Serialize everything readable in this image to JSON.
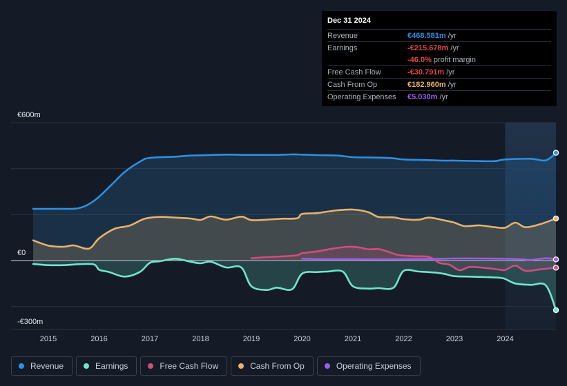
{
  "chart_data": {
    "type": "area",
    "title": "",
    "y_unit": "€",
    "ylim": [
      -300,
      600
    ],
    "y_tick_labels": [
      {
        "value": 600,
        "label": "€600m"
      },
      {
        "value": 0,
        "label": "€0"
      },
      {
        "value": -300,
        "label": "-€300m"
      }
    ],
    "xlim": [
      2014.7,
      2025.0
    ],
    "x_ticks": [
      2015,
      2016,
      2017,
      2018,
      2019,
      2020,
      2021,
      2022,
      2023,
      2024
    ],
    "highlight_start": 2024.0,
    "series": [
      {
        "key": "revenue",
        "name": "Revenue",
        "color": "#2e8fe0",
        "fill": true,
        "points": [
          [
            2014.7,
            225
          ],
          [
            2015.2,
            225
          ],
          [
            2015.6,
            228
          ],
          [
            2015.9,
            260
          ],
          [
            2016.2,
            320
          ],
          [
            2016.5,
            385
          ],
          [
            2016.8,
            430
          ],
          [
            2017.0,
            447
          ],
          [
            2017.5,
            452
          ],
          [
            2017.8,
            457
          ],
          [
            2018.0,
            458
          ],
          [
            2018.5,
            461
          ],
          [
            2018.9,
            460
          ],
          [
            2019.2,
            460
          ],
          [
            2019.5,
            460
          ],
          [
            2019.8,
            462
          ],
          [
            2020.0,
            461
          ],
          [
            2020.3,
            459
          ],
          [
            2020.7,
            457
          ],
          [
            2021.0,
            450
          ],
          [
            2021.5,
            448
          ],
          [
            2021.8,
            445
          ],
          [
            2022.0,
            440
          ],
          [
            2022.5,
            437
          ],
          [
            2022.8,
            435
          ],
          [
            2023.0,
            435
          ],
          [
            2023.5,
            433
          ],
          [
            2023.8,
            433
          ],
          [
            2024.0,
            440
          ],
          [
            2024.5,
            443
          ],
          [
            2024.8,
            436
          ],
          [
            2025.0,
            469
          ]
        ]
      },
      {
        "key": "cash_from_op",
        "name": "Cash From Op",
        "color": "#e8b26a",
        "fill": true,
        "points": [
          [
            2014.7,
            88
          ],
          [
            2015.0,
            65
          ],
          [
            2015.3,
            60
          ],
          [
            2015.5,
            66
          ],
          [
            2015.8,
            52
          ],
          [
            2016.0,
            97
          ],
          [
            2016.3,
            138
          ],
          [
            2016.6,
            152
          ],
          [
            2016.9,
            182
          ],
          [
            2017.2,
            190
          ],
          [
            2017.5,
            187
          ],
          [
            2017.8,
            183
          ],
          [
            2018.0,
            177
          ],
          [
            2018.2,
            192
          ],
          [
            2018.5,
            178
          ],
          [
            2018.8,
            191
          ],
          [
            2019.0,
            176
          ],
          [
            2019.3,
            178
          ],
          [
            2019.6,
            182
          ],
          [
            2019.9,
            184
          ],
          [
            2020.0,
            203
          ],
          [
            2020.3,
            207
          ],
          [
            2020.7,
            219
          ],
          [
            2021.0,
            222
          ],
          [
            2021.3,
            211
          ],
          [
            2021.5,
            190
          ],
          [
            2021.8,
            188
          ],
          [
            2022.0,
            180
          ],
          [
            2022.3,
            178
          ],
          [
            2022.5,
            187
          ],
          [
            2022.8,
            175
          ],
          [
            2023.0,
            165
          ],
          [
            2023.2,
            150
          ],
          [
            2023.5,
            153
          ],
          [
            2023.8,
            145
          ],
          [
            2024.0,
            143
          ],
          [
            2024.2,
            165
          ],
          [
            2024.4,
            145
          ],
          [
            2024.7,
            159
          ],
          [
            2025.0,
            183
          ]
        ]
      },
      {
        "key": "free_cash_flow",
        "name": "Free Cash Flow",
        "color": "#d24c7f",
        "fill": true,
        "points": [
          [
            2019.0,
            10
          ],
          [
            2019.3,
            15
          ],
          [
            2019.6,
            18
          ],
          [
            2019.9,
            23
          ],
          [
            2020.0,
            32
          ],
          [
            2020.3,
            40
          ],
          [
            2020.6,
            52
          ],
          [
            2020.9,
            60
          ],
          [
            2021.1,
            58
          ],
          [
            2021.3,
            49
          ],
          [
            2021.5,
            50
          ],
          [
            2021.7,
            38
          ],
          [
            2021.9,
            24
          ],
          [
            2022.2,
            19
          ],
          [
            2022.5,
            16
          ],
          [
            2022.7,
            -10
          ],
          [
            2022.9,
            -18
          ],
          [
            2023.1,
            -42
          ],
          [
            2023.3,
            -28
          ],
          [
            2023.6,
            -32
          ],
          [
            2023.9,
            -40
          ],
          [
            2024.0,
            -41
          ],
          [
            2024.2,
            -22
          ],
          [
            2024.4,
            -45
          ],
          [
            2024.7,
            -38
          ],
          [
            2025.0,
            -31
          ]
        ]
      },
      {
        "key": "earnings",
        "name": "Earnings",
        "color": "#6ee6cc",
        "fill": true,
        "points": [
          [
            2014.7,
            -15
          ],
          [
            2015.0,
            -20
          ],
          [
            2015.3,
            -20
          ],
          [
            2015.6,
            -16
          ],
          [
            2015.9,
            -17
          ],
          [
            2016.0,
            -40
          ],
          [
            2016.2,
            -50
          ],
          [
            2016.5,
            -70
          ],
          [
            2016.8,
            -50
          ],
          [
            2017.0,
            -10
          ],
          [
            2017.2,
            -3
          ],
          [
            2017.5,
            8
          ],
          [
            2017.8,
            -5
          ],
          [
            2018.0,
            -12
          ],
          [
            2018.2,
            -5
          ],
          [
            2018.5,
            -30
          ],
          [
            2018.8,
            -30
          ],
          [
            2019.0,
            -112
          ],
          [
            2019.3,
            -128
          ],
          [
            2019.5,
            -118
          ],
          [
            2019.8,
            -125
          ],
          [
            2020.0,
            -57
          ],
          [
            2020.3,
            -50
          ],
          [
            2020.5,
            -48
          ],
          [
            2020.8,
            -48
          ],
          [
            2021.0,
            -112
          ],
          [
            2021.3,
            -122
          ],
          [
            2021.5,
            -120
          ],
          [
            2021.8,
            -118
          ],
          [
            2022.0,
            -45
          ],
          [
            2022.3,
            -48
          ],
          [
            2022.6,
            -52
          ],
          [
            2022.8,
            -58
          ],
          [
            2023.0,
            -68
          ],
          [
            2023.3,
            -70
          ],
          [
            2023.6,
            -72
          ],
          [
            2023.9,
            -75
          ],
          [
            2024.0,
            -80
          ],
          [
            2024.2,
            -100
          ],
          [
            2024.5,
            -106
          ],
          [
            2024.8,
            -108
          ],
          [
            2025.0,
            -216
          ]
        ]
      },
      {
        "key": "operating_expenses",
        "name": "Operating Expenses",
        "color": "#9b5de5",
        "fill": false,
        "points": [
          [
            2020.0,
            8
          ],
          [
            2020.5,
            6
          ],
          [
            2021.0,
            6
          ],
          [
            2021.5,
            5
          ],
          [
            2022.0,
            6
          ],
          [
            2022.5,
            7
          ],
          [
            2023.0,
            9
          ],
          [
            2023.5,
            9
          ],
          [
            2024.0,
            8
          ],
          [
            2024.3,
            6
          ],
          [
            2024.5,
            3
          ],
          [
            2024.8,
            10
          ],
          [
            2025.0,
            5
          ]
        ]
      }
    ]
  },
  "tooltip": {
    "date": "Dec 31 2024",
    "rows": [
      {
        "label": "Revenue",
        "value": "€468.581m",
        "unit": "/yr",
        "color": "#2e8fe0"
      },
      {
        "label": "Earnings",
        "value": "-€215.678m",
        "unit": "/yr",
        "color": "#e54545"
      },
      {
        "label": "",
        "value": "-46.0%",
        "unit": "profit margin",
        "color": "#e54545"
      },
      {
        "label": "Free Cash Flow",
        "value": "-€30.791m",
        "unit": "/yr",
        "color": "#e54545"
      },
      {
        "label": "Cash From Op",
        "value": "€182.960m",
        "unit": "/yr",
        "color": "#e8b26a"
      },
      {
        "label": "Operating Expenses",
        "value": "€5.030m",
        "unit": "/yr",
        "color": "#9b5de5"
      }
    ]
  },
  "legend": [
    {
      "label": "Revenue",
      "color": "#2e8fe0"
    },
    {
      "label": "Earnings",
      "color": "#6ee6cc"
    },
    {
      "label": "Free Cash Flow",
      "color": "#d24c7f"
    },
    {
      "label": "Cash From Op",
      "color": "#e8b26a"
    },
    {
      "label": "Operating Expenses",
      "color": "#9b5de5"
    }
  ]
}
